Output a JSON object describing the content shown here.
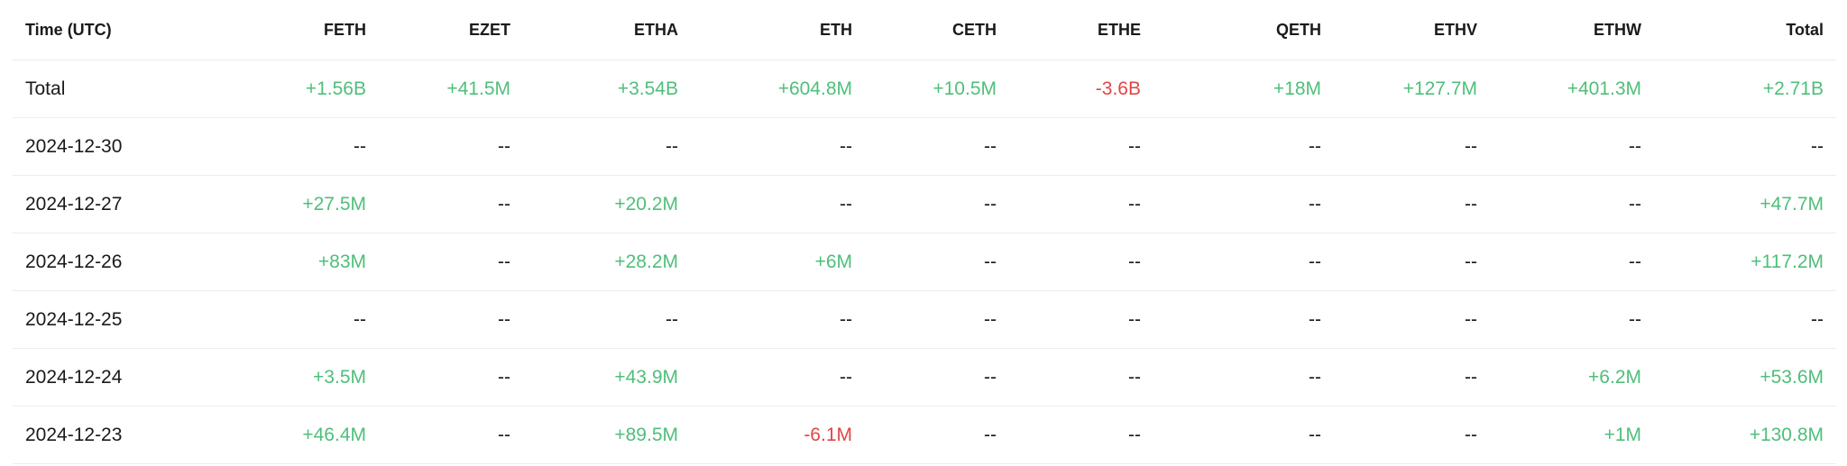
{
  "table": {
    "columns": [
      "Time (UTC)",
      "FETH",
      "EZET",
      "ETHA",
      "ETH",
      "CETH",
      "ETHE",
      "QETH",
      "ETHV",
      "ETHW",
      "Total"
    ],
    "rows": [
      {
        "label": "Total",
        "cells": [
          "+1.56B",
          "+41.5M",
          "+3.54B",
          "+604.8M",
          "+10.5M",
          "-3.6B",
          "+18M",
          "+127.7M",
          "+401.3M",
          "+2.71B"
        ]
      },
      {
        "label": "2024-12-30",
        "cells": [
          "--",
          "--",
          "--",
          "--",
          "--",
          "--",
          "--",
          "--",
          "--",
          "--"
        ]
      },
      {
        "label": "2024-12-27",
        "cells": [
          "+27.5M",
          "--",
          "+20.2M",
          "--",
          "--",
          "--",
          "--",
          "--",
          "--",
          "+47.7M"
        ]
      },
      {
        "label": "2024-12-26",
        "cells": [
          "+83M",
          "--",
          "+28.2M",
          "+6M",
          "--",
          "--",
          "--",
          "--",
          "--",
          "+117.2M"
        ]
      },
      {
        "label": "2024-12-25",
        "cells": [
          "--",
          "--",
          "--",
          "--",
          "--",
          "--",
          "--",
          "--",
          "--",
          "--"
        ]
      },
      {
        "label": "2024-12-24",
        "cells": [
          "+3.5M",
          "--",
          "+43.9M",
          "--",
          "--",
          "--",
          "--",
          "--",
          "+6.2M",
          "+53.6M"
        ]
      },
      {
        "label": "2024-12-23",
        "cells": [
          "+46.4M",
          "--",
          "+89.5M",
          "-6.1M",
          "--",
          "--",
          "--",
          "--",
          "+1M",
          "+130.8M"
        ]
      }
    ]
  },
  "colors": {
    "positive": "#4fbf7a",
    "negative": "#e04646",
    "neutral": "#1a1a1a",
    "row_divider": "#ececec"
  }
}
